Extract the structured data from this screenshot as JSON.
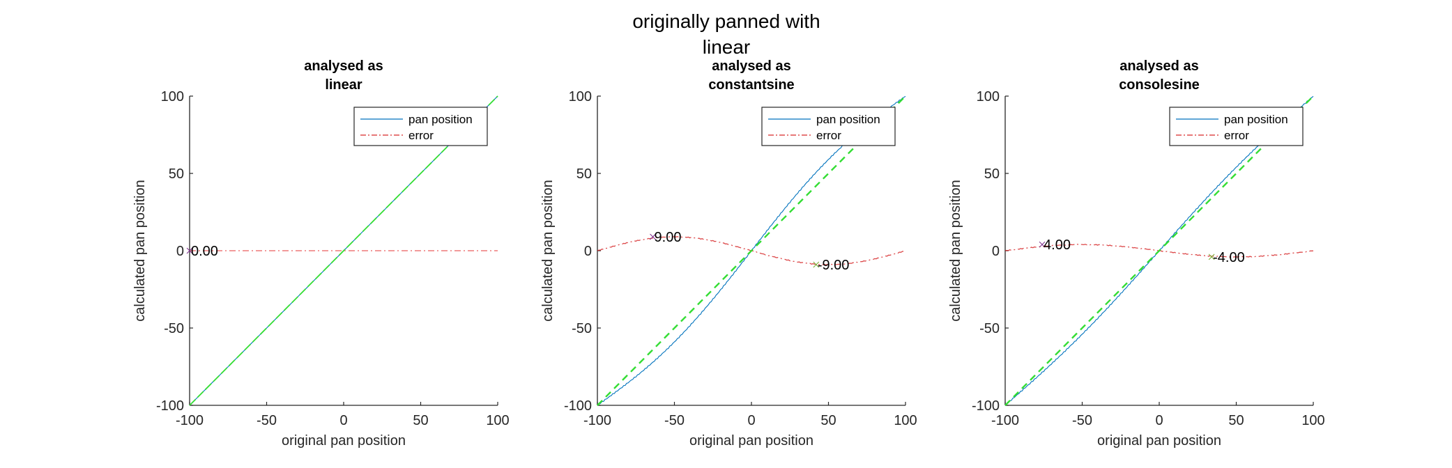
{
  "figure": {
    "suptitle_lines": [
      "originally panned with",
      "linear"
    ],
    "background": "#ffffff"
  },
  "colors": {
    "pan_position": "#0072BD",
    "error": "#D62728",
    "error_light": "#F08080",
    "reference": "#33DD33",
    "axis": "#262626",
    "text": "#000000"
  },
  "chart_data": [
    {
      "type": "line",
      "title": "analysed as linear",
      "title_lines": [
        "analysed as",
        "linear"
      ],
      "xlabel": "original pan position",
      "ylabel": "calculated pan position",
      "xlim": [
        -100,
        100
      ],
      "ylim": [
        -100,
        100
      ],
      "xticks": [
        -100,
        -50,
        0,
        50,
        100
      ],
      "yticks": [
        -100,
        -50,
        0,
        50,
        100
      ],
      "grid": false,
      "legend": {
        "position": "northeast",
        "entries": [
          "pan position",
          "error"
        ]
      },
      "series": [
        {
          "name": "pan position",
          "style": "solid",
          "color": "#0072BD",
          "x": [
            -100,
            -80,
            -60,
            -40,
            -20,
            0,
            20,
            40,
            60,
            80,
            100
          ],
          "y": [
            -100,
            -80,
            -60,
            -40,
            -20,
            0,
            20,
            40,
            60,
            80,
            100
          ]
        },
        {
          "name": "error",
          "style": "dash-dot",
          "color": "#F08080",
          "x": [
            -100,
            -80,
            -60,
            -40,
            -20,
            0,
            20,
            40,
            60,
            80,
            100
          ],
          "y": [
            0,
            0,
            0,
            0,
            0,
            0,
            0,
            0,
            0,
            0,
            0
          ]
        },
        {
          "name": "reference (y = x)",
          "style": "dashed",
          "color": "#33DD33",
          "x": [
            -100,
            100
          ],
          "y": [
            -100,
            100
          ]
        }
      ],
      "error_amplitude": 0,
      "annotations": [
        {
          "text": "0.00",
          "x": -100,
          "y": 0,
          "marker": "x"
        }
      ]
    },
    {
      "type": "line",
      "title": "analysed as constantsine",
      "title_lines": [
        "analysed as",
        "constantsine"
      ],
      "xlabel": "original pan position",
      "ylabel": "calculated pan position",
      "xlim": [
        -100,
        100
      ],
      "ylim": [
        -100,
        100
      ],
      "xticks": [
        -100,
        -50,
        0,
        50,
        100
      ],
      "yticks": [
        -100,
        -50,
        0,
        50,
        100
      ],
      "grid": false,
      "legend": {
        "position": "northeast",
        "entries": [
          "pan position",
          "error"
        ]
      },
      "series": [
        {
          "name": "pan position",
          "style": "solid",
          "color": "#0072BD",
          "x": [
            -100,
            -80,
            -60,
            -40,
            -20,
            0,
            20,
            40,
            60,
            80,
            100
          ],
          "y": [
            -100,
            -85.3,
            -68.6,
            -48.6,
            -25.3,
            0,
            25.3,
            48.6,
            68.6,
            85.3,
            100
          ]
        },
        {
          "name": "error",
          "style": "dash-dot",
          "color": "#D62728",
          "x": [
            -100,
            -80,
            -60,
            -40,
            -20,
            0,
            20,
            40,
            60,
            80,
            100
          ],
          "y": [
            0,
            5.3,
            8.6,
            8.6,
            5.3,
            0,
            -5.3,
            -8.6,
            -8.6,
            -5.3,
            0
          ]
        },
        {
          "name": "reference (y = x)",
          "style": "dashed",
          "color": "#33DD33",
          "x": [
            -100,
            100
          ],
          "y": [
            -100,
            100
          ]
        }
      ],
      "error_amplitude": 9,
      "annotations": [
        {
          "text": "9.00",
          "x": -64,
          "y": 9,
          "marker": "x"
        },
        {
          "text": "-9.00",
          "x": 42,
          "y": -9,
          "marker": "x"
        }
      ]
    },
    {
      "type": "line",
      "title": "analysed as consolesine",
      "title_lines": [
        "analysed as",
        "consolesine"
      ],
      "xlabel": "original pan position",
      "ylabel": "calculated pan position",
      "xlim": [
        -100,
        100
      ],
      "ylim": [
        -100,
        100
      ],
      "xticks": [
        -100,
        -50,
        0,
        50,
        100
      ],
      "yticks": [
        -100,
        -50,
        0,
        50,
        100
      ],
      "grid": false,
      "legend": {
        "position": "northeast",
        "entries": [
          "pan position",
          "error"
        ]
      },
      "series": [
        {
          "name": "pan position",
          "style": "solid",
          "color": "#0072BD",
          "x": [
            -100,
            -80,
            -60,
            -40,
            -20,
            0,
            20,
            40,
            60,
            80,
            100
          ],
          "y": [
            -100,
            -82.4,
            -63.8,
            -43.8,
            -22.4,
            0,
            22.4,
            43.8,
            63.8,
            82.4,
            100
          ]
        },
        {
          "name": "error",
          "style": "dash-dot",
          "color": "#D62728",
          "x": [
            -100,
            -80,
            -60,
            -40,
            -20,
            0,
            20,
            40,
            60,
            80,
            100
          ],
          "y": [
            0,
            2.4,
            3.8,
            3.8,
            2.4,
            0,
            -2.4,
            -3.8,
            -3.8,
            -2.4,
            0
          ]
        },
        {
          "name": "reference (y = x)",
          "style": "dashed",
          "color": "#33DD33",
          "x": [
            -100,
            100
          ],
          "y": [
            -100,
            100
          ]
        }
      ],
      "error_amplitude": 4,
      "annotations": [
        {
          "text": "4.00",
          "x": -76,
          "y": 4,
          "marker": "x"
        },
        {
          "text": "-4.00",
          "x": 34,
          "y": -4,
          "marker": "x"
        }
      ]
    }
  ]
}
